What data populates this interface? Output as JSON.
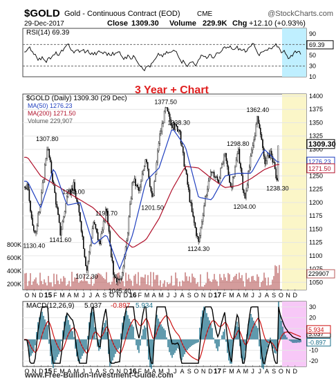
{
  "header": {
    "symbol": "$GOLD",
    "description": "Gold - Continuous Contract (EOD)",
    "exchange": "CME",
    "brand": "@StockCharts.com",
    "date": "29-Dec-2017",
    "close_label": "Close",
    "close_value": "1309.30",
    "volume_label": "Volume",
    "volume_value": "229.9K",
    "chg_label": "Chg",
    "chg_value": "+12.10 (+0.93%)"
  },
  "annotation": "3 Year + Chart",
  "footer": "www.Free-Bullion-Investment-Guide.com",
  "colors": {
    "price": "#000000",
    "ma50": "#1f3fbf",
    "ma200": "#b0102a",
    "volume": "#b85a5a",
    "rsi": "#000000",
    "macd": "#000000",
    "macd_signal": "#cc1010",
    "histogram": "#1b6f8a",
    "highlight_cyan": "#bfefff",
    "highlight_yellow": "#fbf6c8",
    "highlight_pink": "#f7c8f7",
    "annotation": "#e02020"
  },
  "chart_data": [
    {
      "type": "line",
      "panel": "rsi",
      "title": "RSI(14) 69.39",
      "series": [
        {
          "name": "RSI(14)",
          "last": 69.39
        }
      ],
      "ylim": [
        10,
        100
      ],
      "yticks": [
        10,
        30,
        50,
        70,
        90
      ],
      "reference_lines": [
        30,
        70
      ],
      "last_value_label": "69.39"
    },
    {
      "type": "line",
      "panel": "price",
      "title": "$GOLD (Daily) 1309.30 (29 Dec)",
      "legend": [
        {
          "name": "MA(50) 1276.23",
          "color": "#1f3fbf"
        },
        {
          "name": "MA(200) 1271.50",
          "color": "#b0102a"
        },
        {
          "name": "Volume 229,907",
          "color": "#b85a5a"
        }
      ],
      "ylim": [
        1040,
        1400
      ],
      "yticks": [
        1050,
        1075,
        1100,
        1125,
        1150,
        1175,
        1200,
        1225,
        1250,
        1275,
        1300,
        1325,
        1350,
        1375,
        1400
      ],
      "volume_ticks": [
        "200K",
        "400K",
        "600K",
        "800K"
      ],
      "price_points": [
        {
          "x": "2014-10",
          "y": 1230
        },
        {
          "x": "2014-11",
          "y": 1140
        },
        {
          "x": "2014-11",
          "y": 1130.4
        },
        {
          "x": "2014-12",
          "y": 1200
        },
        {
          "x": "2015-01",
          "y": 1307.8
        },
        {
          "x": "2015-02",
          "y": 1230
        },
        {
          "x": "2015-03",
          "y": 1141.6
        },
        {
          "x": "2015-04",
          "y": 1210
        },
        {
          "x": "2015-05",
          "y": 1232
        },
        {
          "x": "2015-06",
          "y": 1170
        },
        {
          "x": "2015-07",
          "y": 1072.3
        },
        {
          "x": "2015-08",
          "y": 1165
        },
        {
          "x": "2015-09",
          "y": 1120
        },
        {
          "x": "2015-10",
          "y": 1191.7
        },
        {
          "x": "2015-11",
          "y": 1070
        },
        {
          "x": "2015-12",
          "y": 1045.4
        },
        {
          "x": "2016-01",
          "y": 1118
        },
        {
          "x": "2016-02",
          "y": 1245
        },
        {
          "x": "2016-03",
          "y": 1220
        },
        {
          "x": "2016-04",
          "y": 1290
        },
        {
          "x": "2016-05",
          "y": 1201.5
        },
        {
          "x": "2016-06",
          "y": 1320
        },
        {
          "x": "2016-07",
          "y": 1377.5
        },
        {
          "x": "2016-08",
          "y": 1345
        },
        {
          "x": "2016-09",
          "y": 1338.3
        },
        {
          "x": "2016-10",
          "y": 1260
        },
        {
          "x": "2016-11",
          "y": 1180
        },
        {
          "x": "2016-12",
          "y": 1124.3
        },
        {
          "x": "2017-01",
          "y": 1210
        },
        {
          "x": "2017-02",
          "y": 1258
        },
        {
          "x": "2017-03",
          "y": 1240
        },
        {
          "x": "2017-04",
          "y": 1290
        },
        {
          "x": "2017-05",
          "y": 1225
        },
        {
          "x": "2017-06",
          "y": 1298.8
        },
        {
          "x": "2017-07",
          "y": 1204
        },
        {
          "x": "2017-08",
          "y": 1290
        },
        {
          "x": "2017-09",
          "y": 1362.4
        },
        {
          "x": "2017-10",
          "y": 1275
        },
        {
          "x": "2017-11",
          "y": 1295
        },
        {
          "x": "2017-12",
          "y": 1238.3
        },
        {
          "x": "2017-12",
          "y": 1309.3
        }
      ],
      "ma50_points": [
        {
          "x": "2014-10",
          "y": 1240
        },
        {
          "x": "2014-12",
          "y": 1190
        },
        {
          "x": "2015-02",
          "y": 1265
        },
        {
          "x": "2015-04",
          "y": 1195
        },
        {
          "x": "2015-06",
          "y": 1200
        },
        {
          "x": "2015-08",
          "y": 1120
        },
        {
          "x": "2015-10",
          "y": 1140
        },
        {
          "x": "2015-12",
          "y": 1075
        },
        {
          "x": "2016-02",
          "y": 1140
        },
        {
          "x": "2016-04",
          "y": 1240
        },
        {
          "x": "2016-06",
          "y": 1265
        },
        {
          "x": "2016-08",
          "y": 1340
        },
        {
          "x": "2016-10",
          "y": 1305
        },
        {
          "x": "2016-12",
          "y": 1210
        },
        {
          "x": "2017-02",
          "y": 1205
        },
        {
          "x": "2017-04",
          "y": 1250
        },
        {
          "x": "2017-06",
          "y": 1255
        },
        {
          "x": "2017-08",
          "y": 1255
        },
        {
          "x": "2017-10",
          "y": 1300
        },
        {
          "x": "2017-12",
          "y": 1276.23
        }
      ],
      "ma200_points": [
        {
          "x": "2014-10",
          "y": 1285
        },
        {
          "x": "2014-12",
          "y": 1250
        },
        {
          "x": "2015-02",
          "y": 1235
        },
        {
          "x": "2015-04",
          "y": 1220
        },
        {
          "x": "2015-06",
          "y": 1205
        },
        {
          "x": "2015-08",
          "y": 1190
        },
        {
          "x": "2015-10",
          "y": 1165
        },
        {
          "x": "2015-12",
          "y": 1135
        },
        {
          "x": "2016-02",
          "y": 1115
        },
        {
          "x": "2016-04",
          "y": 1130
        },
        {
          "x": "2016-06",
          "y": 1170
        },
        {
          "x": "2016-08",
          "y": 1225
        },
        {
          "x": "2016-10",
          "y": 1268
        },
        {
          "x": "2016-12",
          "y": 1265
        },
        {
          "x": "2017-02",
          "y": 1245
        },
        {
          "x": "2017-04",
          "y": 1228
        },
        {
          "x": "2017-06",
          "y": 1232
        },
        {
          "x": "2017-08",
          "y": 1245
        },
        {
          "x": "2017-10",
          "y": 1262
        },
        {
          "x": "2017-12",
          "y": 1271.5
        }
      ],
      "price_labels": [
        {
          "text": "1307.80",
          "x": "2015-01",
          "y": 1307.8
        },
        {
          "text": "1232.00",
          "x": "2015-05",
          "y": 1232
        },
        {
          "text": "1141.60",
          "x": "2015-03",
          "y": 1141.6
        },
        {
          "text": "1130.40",
          "x": "2014-11",
          "y": 1130.4
        },
        {
          "text": "1191.70",
          "x": "2015-10",
          "y": 1191.7
        },
        {
          "text": "1072.30",
          "x": "2015-07",
          "y": 1072.3
        },
        {
          "text": "1045.40",
          "x": "2015-12",
          "y": 1045.4
        },
        {
          "text": "1201.50",
          "x": "2016-05",
          "y": 1201.5
        },
        {
          "text": "1377.50",
          "x": "2016-07",
          "y": 1377.5
        },
        {
          "text": "1338.30",
          "x": "2016-09",
          "y": 1338.3
        },
        {
          "text": "1124.30",
          "x": "2016-12",
          "y": 1124.3
        },
        {
          "text": "1298.80",
          "x": "2017-06",
          "y": 1298.8
        },
        {
          "text": "1204.00",
          "x": "2017-07",
          "y": 1204
        },
        {
          "text": "1362.40",
          "x": "2017-09",
          "y": 1362.4
        },
        {
          "text": "1238.30",
          "x": "2017-12",
          "y": 1238.3
        }
      ],
      "last_value_labels": [
        "1309.30",
        "1276.23",
        "1271.50",
        "229907"
      ],
      "month_axis": [
        "O",
        "N",
        "D",
        "15",
        "F",
        "M",
        "A",
        "M",
        "J",
        "J",
        "A",
        "S",
        "O",
        "N",
        "D",
        "16",
        "F",
        "M",
        "A",
        "M",
        "J",
        "J",
        "A",
        "S",
        "O",
        "N",
        "D",
        "17",
        "F",
        "M",
        "A",
        "M",
        "J",
        "J",
        "A",
        "S",
        "O",
        "N",
        "D"
      ],
      "grid": true
    },
    {
      "type": "line",
      "panel": "macd",
      "title": "MACD(12,26,9)",
      "values_text": [
        "5.037",
        "-0.897",
        "5.934"
      ],
      "series": [
        {
          "name": "MACD(12,26,9)",
          "last": 5.037
        },
        {
          "name": "Signal",
          "last": 5.934
        },
        {
          "name": "Histogram",
          "last": -0.897
        }
      ],
      "ylim": [
        -25,
        35
      ],
      "yticks": [
        -20,
        -10,
        0,
        10,
        20,
        30
      ],
      "last_value_labels": [
        "5.037",
        "5.934",
        "-0.897"
      ]
    }
  ]
}
